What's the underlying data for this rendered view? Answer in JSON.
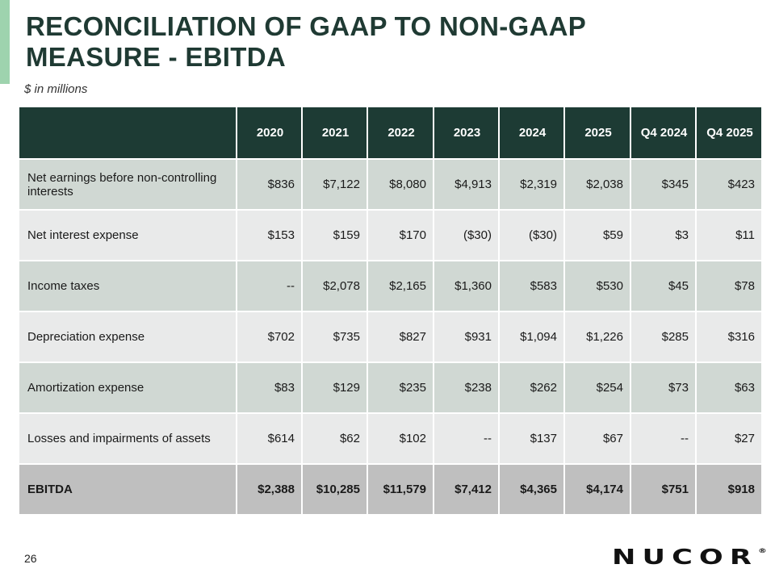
{
  "title_lines": [
    "RECONCILIATION OF GAAP TO NON-GAAP",
    "MEASURE - EBITDA"
  ],
  "subtitle": "$ in millions",
  "columns": [
    "2020",
    "2021",
    "2022",
    "2023",
    "2024",
    "2025",
    "Q4 2024",
    "Q4 2025"
  ],
  "rows": [
    {
      "label": "Net earnings before non-controlling interests",
      "values": [
        "$836",
        "$7,122",
        "$8,080",
        "$4,913",
        "$2,319",
        "$2,038",
        "$345",
        "$423"
      ]
    },
    {
      "label": "Net interest expense",
      "values": [
        "$153",
        "$159",
        "$170",
        "($30)",
        "($30)",
        "$59",
        "$3",
        "$11"
      ]
    },
    {
      "label": "Income taxes",
      "values": [
        "--",
        "$2,078",
        "$2,165",
        "$1,360",
        "$583",
        "$530",
        "$45",
        "$78"
      ]
    },
    {
      "label": "Depreciation expense",
      "values": [
        "$702",
        "$735",
        "$827",
        "$931",
        "$1,094",
        "$1,226",
        "$285",
        "$316"
      ]
    },
    {
      "label": "Amortization expense",
      "values": [
        "$83",
        "$129",
        "$235",
        "$238",
        "$262",
        "$254",
        "$73",
        "$63"
      ]
    },
    {
      "label": "Losses and impairments of assets",
      "values": [
        "$614",
        "$62",
        "$102",
        "--",
        "$137",
        "$67",
        "--",
        "$27"
      ]
    },
    {
      "label": "EBITDA",
      "values": [
        "$2,388",
        "$10,285",
        "$11,579",
        "$7,412",
        "$4,365",
        "$4,174",
        "$751",
        "$918"
      ]
    }
  ],
  "page_number": "26",
  "logo": {
    "text": "NUCOR",
    "mark": "®"
  }
}
